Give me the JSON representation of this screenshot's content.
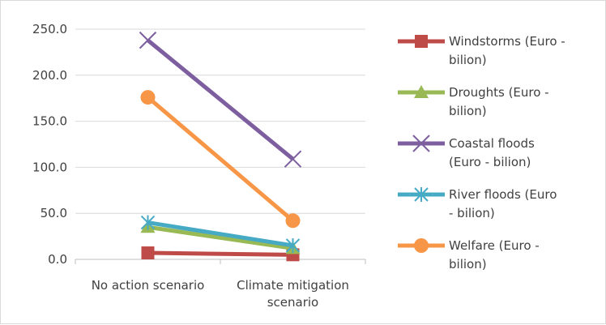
{
  "chart_data": {
    "type": "line",
    "categories": [
      [
        "No action scenario"
      ],
      [
        "Climate mitigation",
        "scenario"
      ]
    ],
    "ylim": [
      0,
      250
    ],
    "yticks": [
      "0.0",
      "50.0",
      "100.0",
      "150.0",
      "200.0",
      "250.0"
    ],
    "grid": true,
    "legend_position": "right",
    "series": [
      {
        "name": "Windstorms (Euro - bilion)",
        "legend_lines": [
          "Windstorms (Euro -",
          "bilion)"
        ],
        "values": [
          7,
          5
        ],
        "color": "#be4b48",
        "marker": "square"
      },
      {
        "name": "Droughts (Euro - bilion)",
        "legend_lines": [
          "Droughts (Euro -",
          "bilion)"
        ],
        "values": [
          35,
          12
        ],
        "color": "#98b954",
        "marker": "triangle"
      },
      {
        "name": "Coastal floods (Euro - bilion)",
        "legend_lines": [
          "Coastal floods",
          "(Euro - bilion)"
        ],
        "values": [
          238,
          109
        ],
        "color": "#7d5fa0",
        "marker": "x"
      },
      {
        "name": "River floods (Euro - bilion)",
        "legend_lines": [
          "River floods (Euro",
          "- bilion)"
        ],
        "values": [
          40,
          15
        ],
        "color": "#46aac5",
        "marker": "star"
      },
      {
        "name": "Welfare (Euro - bilion)",
        "legend_lines": [
          "Welfare (Euro -",
          "bilion)"
        ],
        "values": [
          176,
          42
        ],
        "color": "#f79646",
        "marker": "circle"
      }
    ]
  }
}
